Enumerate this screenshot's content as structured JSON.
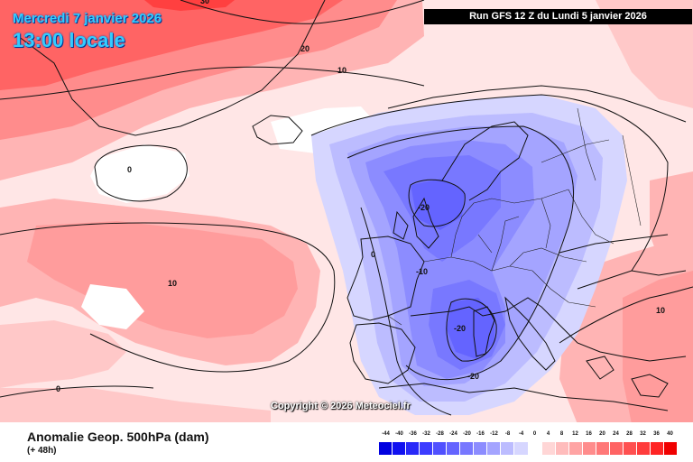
{
  "header": {
    "date": "Mercredi 7 janvier 2026",
    "time": "13:00 locale",
    "run_info": "Run GFS 12 Z du Lundi 5 janvier 2026"
  },
  "copyright": "Copyright © 2026 Meteociel.fr",
  "footer": {
    "parameter": "Anomalie Geop. 500hPa (dam)",
    "lead_time": "(+ 48h)"
  },
  "legend": {
    "labels": [
      "-44",
      "-40",
      "-36",
      "-32",
      "-28",
      "-24",
      "-20",
      "-16",
      "-12",
      "-8",
      "-4",
      "0",
      "4",
      "8",
      "12",
      "16",
      "20",
      "24",
      "28",
      "32",
      "36",
      "40"
    ],
    "colors": [
      "#0000e0",
      "#1010f0",
      "#2828f8",
      "#3c3cff",
      "#5050ff",
      "#6464ff",
      "#7878ff",
      "#8c8cff",
      "#a4a4ff",
      "#bcbcff",
      "#d6d6ff",
      "#ffffff",
      "#ffd6d6",
      "#ffbcbc",
      "#ffa4a4",
      "#ff8c8c",
      "#ff7878",
      "#ff6464",
      "#ff5050",
      "#ff3c3c",
      "#ff2424",
      "#f00000"
    ]
  },
  "contours": {
    "label_top": "30",
    "label_20": "20",
    "label_10_north": "10",
    "label_0_west": "0",
    "label_10_atlantic": "10",
    "label_0_sw": "0",
    "label_0_center": "0",
    "label_minus10": "-10",
    "label_minus20_north": "-20",
    "label_minus20_center": "-20",
    "label_minus20_south": "-20",
    "label_10_east": "10"
  },
  "colors": {
    "title": "#33ccff",
    "anomaly_positive": "#ff6464",
    "anomaly_negative": "#7878ff"
  }
}
